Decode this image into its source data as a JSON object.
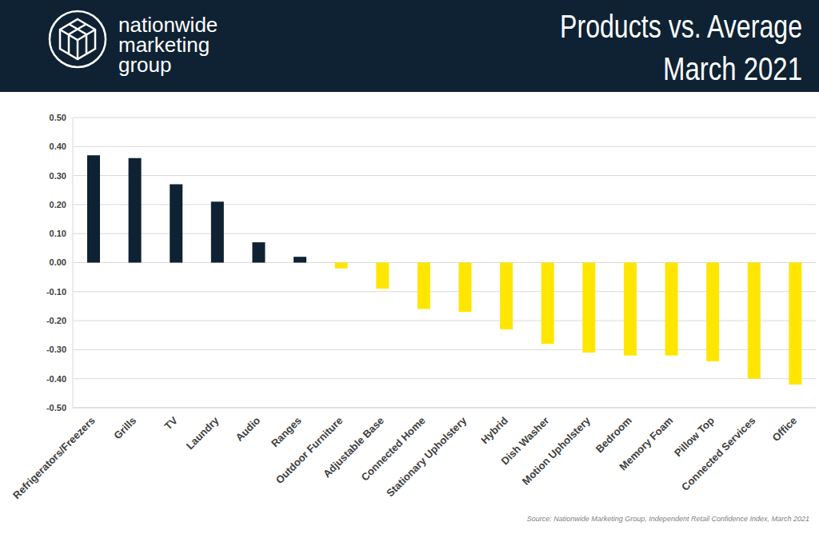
{
  "logo_text": [
    "nationwide",
    "marketing",
    "group"
  ],
  "source": "Source: Nationwide Marketing Group, Independent Retail Confidence Index, March 2021",
  "chart_data": {
    "type": "bar",
    "title": "Products vs. Average",
    "subtitle": "March 2021",
    "categories": [
      "Refrigerators/Freezers",
      "Grills",
      "TV",
      "Laundry",
      "Audio",
      "Ranges",
      "Outdoor Furniture",
      "Adjustable Base",
      "Connected Home",
      "Stationary Upholstery",
      "Hybrid",
      "Dish Washer",
      "Motion Upholstery",
      "Bedroom",
      "Memory Foam",
      "Pillow Top",
      "Connected Services",
      "Office"
    ],
    "values": [
      0.37,
      0.36,
      0.27,
      0.21,
      0.07,
      0.02,
      -0.02,
      -0.09,
      -0.16,
      -0.17,
      -0.23,
      -0.28,
      -0.31,
      -0.32,
      -0.32,
      -0.34,
      -0.4,
      -0.42
    ],
    "colors": [
      "#0e2233",
      "#0e2233",
      "#0e2233",
      "#0e2233",
      "#0e2233",
      "#0e2233",
      "#ffe600",
      "#ffe600",
      "#ffe600",
      "#ffe600",
      "#ffe600",
      "#ffe600",
      "#ffe600",
      "#ffe600",
      "#ffe600",
      "#ffe600",
      "#ffe600",
      "#ffe600"
    ],
    "ylim": [
      -0.5,
      0.5
    ],
    "yticks": [
      {
        "value": 0.5,
        "label": "0.50"
      },
      {
        "value": 0.4,
        "label": "0.40"
      },
      {
        "value": 0.3,
        "label": "0.30"
      },
      {
        "value": 0.2,
        "label": "0.20"
      },
      {
        "value": 0.1,
        "label": "0.10"
      },
      {
        "value": 0,
        "label": "0.00"
      },
      {
        "value": -0.1,
        "label": "-0.10"
      },
      {
        "value": -0.2,
        "label": "-0.20"
      },
      {
        "value": -0.3,
        "label": "-0.30"
      },
      {
        "value": -0.4,
        "label": "-0.40"
      },
      {
        "value": -0.5,
        "label": "-0.50"
      }
    ],
    "grid": true
  }
}
